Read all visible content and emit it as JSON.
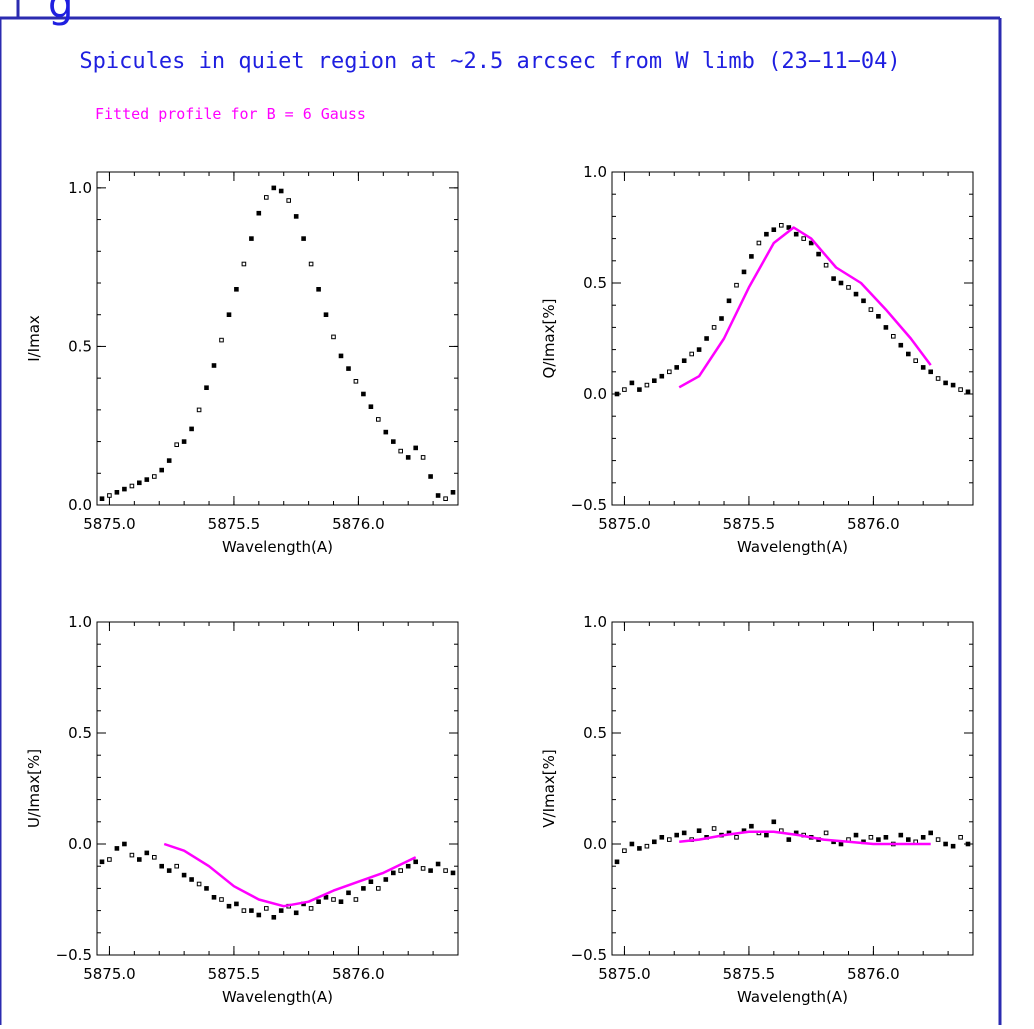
{
  "header": {
    "cut_text": "g"
  },
  "figure": {
    "title": "Spicules in quiet region at ~2.5 arcsec from W limb (23−11−04)",
    "subtitle": "Fitted profile for B =  6 Gauss"
  },
  "colors": {
    "frame": "#2b2bb0",
    "title": "#1f1fe0",
    "fit": "#ff00ff",
    "points": "#000000",
    "axis": "#000000"
  },
  "chart_data": [
    {
      "type": "scatter",
      "panel": "top-left",
      "xlabel": "Wavelength(A)",
      "ylabel": "I/Imax",
      "xlim": [
        5874.95,
        5876.4
      ],
      "ylim": [
        0.0,
        1.05
      ],
      "xticks": [
        5875.0,
        5875.5,
        5876.0
      ],
      "xtick_labels": [
        "5875.0",
        "5875.5",
        "5876.0"
      ],
      "yticks": [
        0.0,
        0.5,
        1.0
      ],
      "ytick_labels": [
        "0.0",
        "0.5",
        "1.0"
      ],
      "series": [
        {
          "role": "observed",
          "x": [
            5874.97,
            5875.0,
            5875.03,
            5875.06,
            5875.09,
            5875.12,
            5875.15,
            5875.18,
            5875.21,
            5875.24,
            5875.27,
            5875.3,
            5875.33,
            5875.36,
            5875.39,
            5875.42,
            5875.45,
            5875.48,
            5875.51,
            5875.54,
            5875.57,
            5875.6,
            5875.63,
            5875.66,
            5875.69,
            5875.72,
            5875.75,
            5875.78,
            5875.81,
            5875.84,
            5875.87,
            5875.9,
            5875.93,
            5875.96,
            5875.99,
            5876.02,
            5876.05,
            5876.08,
            5876.11,
            5876.14,
            5876.17,
            5876.2,
            5876.23,
            5876.26,
            5876.29,
            5876.32,
            5876.35,
            5876.38
          ],
          "y": [
            0.02,
            0.03,
            0.04,
            0.05,
            0.06,
            0.07,
            0.08,
            0.09,
            0.11,
            0.14,
            0.19,
            0.2,
            0.24,
            0.3,
            0.37,
            0.44,
            0.52,
            0.6,
            0.68,
            0.76,
            0.84,
            0.92,
            0.97,
            1.0,
            0.99,
            0.96,
            0.91,
            0.84,
            0.76,
            0.68,
            0.6,
            0.53,
            0.47,
            0.43,
            0.39,
            0.35,
            0.31,
            0.27,
            0.23,
            0.2,
            0.17,
            0.15,
            0.18,
            0.15,
            0.09,
            0.03,
            0.02,
            0.04
          ]
        }
      ]
    },
    {
      "type": "scatter",
      "panel": "top-right",
      "xlabel": "Wavelength(A)",
      "ylabel": "Q/Imax[%]",
      "xlim": [
        5874.95,
        5876.4
      ],
      "ylim": [
        -0.5,
        1.0
      ],
      "xticks": [
        5875.0,
        5875.5,
        5876.0
      ],
      "xtick_labels": [
        "5875.0",
        "5875.5",
        "5876.0"
      ],
      "yticks": [
        -0.5,
        0.0,
        0.5,
        1.0
      ],
      "ytick_labels": [
        "−0.5",
        "0.0",
        "0.5",
        "1.0"
      ],
      "series": [
        {
          "role": "observed",
          "x": [
            5874.97,
            5875.0,
            5875.03,
            5875.06,
            5875.09,
            5875.12,
            5875.15,
            5875.18,
            5875.21,
            5875.24,
            5875.27,
            5875.3,
            5875.33,
            5875.36,
            5875.39,
            5875.42,
            5875.45,
            5875.48,
            5875.51,
            5875.54,
            5875.57,
            5875.6,
            5875.63,
            5875.66,
            5875.69,
            5875.72,
            5875.75,
            5875.78,
            5875.81,
            5875.84,
            5875.87,
            5875.9,
            5875.93,
            5875.96,
            5875.99,
            5876.02,
            5876.05,
            5876.08,
            5876.11,
            5876.14,
            5876.17,
            5876.2,
            5876.23,
            5876.26,
            5876.29,
            5876.32,
            5876.35,
            5876.38
          ],
          "y": [
            0.0,
            0.02,
            0.05,
            0.02,
            0.04,
            0.06,
            0.08,
            0.1,
            0.12,
            0.15,
            0.18,
            0.2,
            0.25,
            0.3,
            0.34,
            0.42,
            0.49,
            0.55,
            0.62,
            0.68,
            0.72,
            0.74,
            0.76,
            0.75,
            0.72,
            0.7,
            0.68,
            0.63,
            0.58,
            0.52,
            0.5,
            0.48,
            0.45,
            0.42,
            0.38,
            0.35,
            0.3,
            0.26,
            0.22,
            0.18,
            0.15,
            0.12,
            0.1,
            0.07,
            0.05,
            0.04,
            0.02,
            0.01
          ]
        },
        {
          "role": "fit",
          "x": [
            5875.22,
            5875.3,
            5875.4,
            5875.5,
            5875.6,
            5875.68,
            5875.75,
            5875.85,
            5875.95,
            5876.05,
            5876.15,
            5876.23
          ],
          "y": [
            0.03,
            0.08,
            0.25,
            0.48,
            0.68,
            0.75,
            0.7,
            0.57,
            0.5,
            0.38,
            0.25,
            0.13
          ]
        }
      ]
    },
    {
      "type": "scatter",
      "panel": "bottom-left",
      "xlabel": "Wavelength(A)",
      "ylabel": "U/Imax[%]",
      "xlim": [
        5874.95,
        5876.4
      ],
      "ylim": [
        -0.5,
        1.0
      ],
      "xticks": [
        5875.0,
        5875.5,
        5876.0
      ],
      "xtick_labels": [
        "5875.0",
        "5875.5",
        "5876.0"
      ],
      "yticks": [
        -0.5,
        0.0,
        0.5,
        1.0
      ],
      "ytick_labels": [
        "−0.5",
        "0.0",
        "0.5",
        "1.0"
      ],
      "series": [
        {
          "role": "observed",
          "x": [
            5874.97,
            5875.0,
            5875.03,
            5875.06,
            5875.09,
            5875.12,
            5875.15,
            5875.18,
            5875.21,
            5875.24,
            5875.27,
            5875.3,
            5875.33,
            5875.36,
            5875.39,
            5875.42,
            5875.45,
            5875.48,
            5875.51,
            5875.54,
            5875.57,
            5875.6,
            5875.63,
            5875.66,
            5875.69,
            5875.72,
            5875.75,
            5875.78,
            5875.81,
            5875.84,
            5875.87,
            5875.9,
            5875.93,
            5875.96,
            5875.99,
            5876.02,
            5876.05,
            5876.08,
            5876.11,
            5876.14,
            5876.17,
            5876.2,
            5876.23,
            5876.26,
            5876.29,
            5876.32,
            5876.35,
            5876.38
          ],
          "y": [
            -0.08,
            -0.07,
            -0.02,
            0.0,
            -0.05,
            -0.07,
            -0.04,
            -0.06,
            -0.1,
            -0.12,
            -0.1,
            -0.14,
            -0.16,
            -0.18,
            -0.2,
            -0.24,
            -0.25,
            -0.28,
            -0.27,
            -0.3,
            -0.3,
            -0.32,
            -0.29,
            -0.33,
            -0.3,
            -0.28,
            -0.31,
            -0.27,
            -0.29,
            -0.26,
            -0.24,
            -0.25,
            -0.26,
            -0.22,
            -0.25,
            -0.2,
            -0.17,
            -0.2,
            -0.16,
            -0.13,
            -0.12,
            -0.1,
            -0.08,
            -0.11,
            -0.12,
            -0.09,
            -0.12,
            -0.13
          ]
        },
        {
          "role": "fit",
          "x": [
            5875.22,
            5875.3,
            5875.4,
            5875.5,
            5875.6,
            5875.7,
            5875.8,
            5875.9,
            5876.0,
            5876.1,
            5876.23
          ],
          "y": [
            0.0,
            -0.03,
            -0.1,
            -0.19,
            -0.25,
            -0.28,
            -0.26,
            -0.21,
            -0.17,
            -0.13,
            -0.06
          ]
        }
      ]
    },
    {
      "type": "scatter",
      "panel": "bottom-right",
      "xlabel": "Wavelength(A)",
      "ylabel": "V/Imax[%]",
      "xlim": [
        5874.95,
        5876.4
      ],
      "ylim": [
        -0.5,
        1.0
      ],
      "xticks": [
        5875.0,
        5875.5,
        5876.0
      ],
      "xtick_labels": [
        "5875.0",
        "5875.5",
        "5876.0"
      ],
      "yticks": [
        -0.5,
        0.0,
        0.5,
        1.0
      ],
      "ytick_labels": [
        "−0.5",
        "0.0",
        "0.5",
        "1.0"
      ],
      "series": [
        {
          "role": "observed",
          "x": [
            5874.97,
            5875.0,
            5875.03,
            5875.06,
            5875.09,
            5875.12,
            5875.15,
            5875.18,
            5875.21,
            5875.24,
            5875.27,
            5875.3,
            5875.33,
            5875.36,
            5875.39,
            5875.42,
            5875.45,
            5875.48,
            5875.51,
            5875.54,
            5875.57,
            5875.6,
            5875.63,
            5875.66,
            5875.69,
            5875.72,
            5875.75,
            5875.78,
            5875.81,
            5875.84,
            5875.87,
            5875.9,
            5875.93,
            5875.96,
            5875.99,
            5876.02,
            5876.05,
            5876.08,
            5876.11,
            5876.14,
            5876.17,
            5876.2,
            5876.23,
            5876.26,
            5876.29,
            5876.32,
            5876.35,
            5876.38
          ],
          "y": [
            -0.08,
            -0.03,
            0.0,
            -0.02,
            -0.01,
            0.01,
            0.03,
            0.02,
            0.04,
            0.05,
            0.02,
            0.06,
            0.03,
            0.07,
            0.04,
            0.05,
            0.03,
            0.06,
            0.08,
            0.05,
            0.04,
            0.1,
            0.06,
            0.02,
            0.05,
            0.04,
            0.03,
            0.02,
            0.05,
            0.01,
            0.0,
            0.02,
            0.04,
            0.01,
            0.03,
            0.02,
            0.03,
            0.0,
            0.04,
            0.02,
            0.01,
            0.03,
            0.05,
            0.02,
            0.0,
            -0.01,
            0.03,
            0.0
          ]
        },
        {
          "role": "fit",
          "x": [
            5875.22,
            5875.3,
            5875.4,
            5875.5,
            5875.6,
            5875.7,
            5875.8,
            5875.9,
            5876.0,
            5876.1,
            5876.23
          ],
          "y": [
            0.01,
            0.02,
            0.04,
            0.055,
            0.055,
            0.04,
            0.02,
            0.01,
            0.0,
            0.0,
            0.0
          ]
        }
      ]
    }
  ]
}
